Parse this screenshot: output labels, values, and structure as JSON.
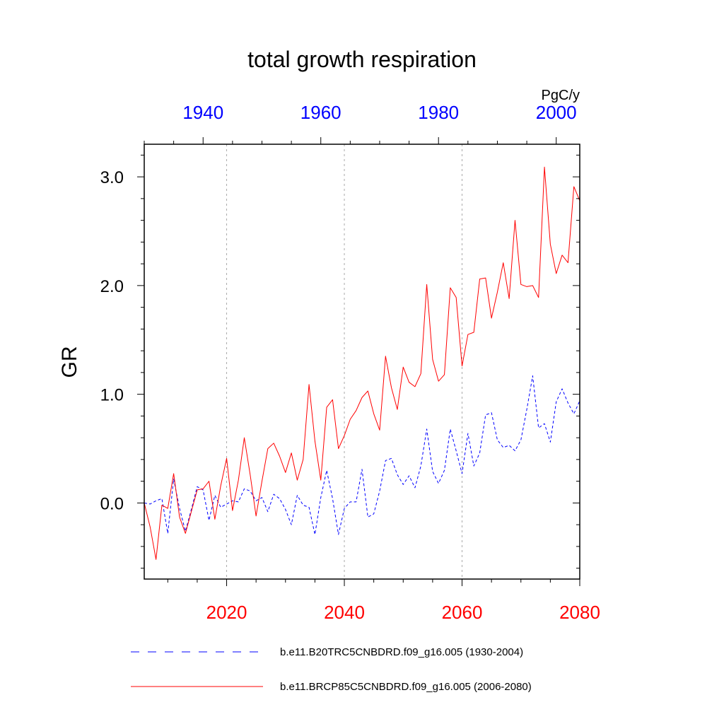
{
  "chart_data": {
    "type": "line",
    "title": "total growth respiration",
    "units_label": "PgC/y",
    "ylabel": "GR",
    "xlabel": "",
    "ylim": [
      -0.7,
      3.3
    ],
    "yticks": [
      0.0,
      1.0,
      2.0,
      3.0
    ],
    "ytick_labels": [
      "0.0",
      "1.0",
      "2.0",
      "3.0"
    ],
    "bottom_axis": {
      "color": "#ff0000",
      "range": [
        2006,
        2080
      ],
      "ticks": [
        2020,
        2040,
        2060,
        2080
      ],
      "tick_labels": [
        "2020",
        "2040",
        "2060",
        "2080"
      ]
    },
    "top_axis": {
      "color": "#0000ff",
      "range": [
        1930,
        2004
      ],
      "ticks": [
        1940,
        1960,
        1980,
        2000
      ],
      "tick_labels": [
        "1940",
        "1960",
        "1980",
        "2000"
      ]
    },
    "gridlines_x": [
      2020,
      2040,
      2060
    ],
    "series": [
      {
        "name": "b.e11.B20TRC5CNBDRD.f09_g16.005 (1930-2004)",
        "color": "#0000ff",
        "style": "dashed",
        "x_start": 2006,
        "values": [
          0.0,
          -0.01,
          0.02,
          0.04,
          -0.28,
          0.22,
          -0.05,
          -0.26,
          -0.06,
          0.15,
          0.12,
          -0.16,
          0.07,
          -0.04,
          -0.01,
          0.02,
          0.01,
          0.13,
          0.11,
          0.02,
          0.05,
          -0.08,
          0.08,
          0.04,
          -0.06,
          -0.2,
          0.07,
          -0.02,
          -0.04,
          -0.29,
          0.05,
          0.3,
          0.04,
          -0.29,
          -0.05,
          0.01,
          0.01,
          0.31,
          -0.13,
          -0.1,
          0.11,
          0.39,
          0.41,
          0.26,
          0.17,
          0.25,
          0.14,
          0.34,
          0.68,
          0.29,
          0.18,
          0.3,
          0.68,
          0.48,
          0.27,
          0.64,
          0.34,
          0.46,
          0.81,
          0.83,
          0.58,
          0.51,
          0.53,
          0.48,
          0.58,
          0.86,
          1.17,
          0.69,
          0.73,
          0.56,
          0.93,
          1.05,
          0.92,
          0.82,
          0.94
        ]
      },
      {
        "name": "b.e11.BRCP85C5CNBDRD.f09_g16.005 (2006-2080)",
        "color": "#ff0000",
        "style": "solid",
        "x_start": 2006,
        "values": [
          0.0,
          -0.22,
          -0.52,
          -0.02,
          -0.05,
          0.27,
          -0.13,
          -0.28,
          -0.08,
          0.12,
          0.13,
          0.2,
          -0.15,
          0.16,
          0.41,
          -0.07,
          0.21,
          0.6,
          0.26,
          -0.12,
          0.2,
          0.5,
          0.55,
          0.43,
          0.28,
          0.46,
          0.21,
          0.4,
          1.09,
          0.57,
          0.21,
          0.88,
          0.95,
          0.5,
          0.62,
          0.77,
          0.85,
          0.97,
          1.03,
          0.82,
          0.67,
          1.35,
          1.06,
          0.86,
          1.25,
          1.11,
          1.07,
          1.19,
          2.01,
          1.32,
          1.12,
          1.18,
          1.98,
          1.89,
          1.26,
          1.55,
          1.57,
          2.06,
          2.07,
          1.7,
          1.94,
          2.21,
          1.88,
          2.6,
          2.01,
          1.99,
          2.0,
          1.89,
          3.09,
          2.38,
          2.11,
          2.28,
          2.21,
          2.91,
          2.78
        ]
      }
    ],
    "legend": [
      "b.e11.B20TRC5CNBDRD.f09_g16.005 (1930-2004)",
      "b.e11.BRCP85C5CNBDRD.f09_g16.005 (2006-2080)"
    ]
  }
}
